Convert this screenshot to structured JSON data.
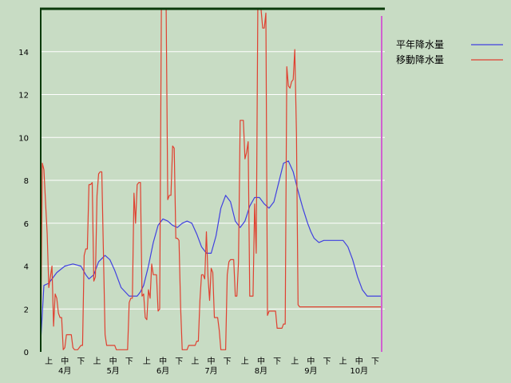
{
  "chart_data": {
    "type": "line",
    "title": "",
    "xlabel": "",
    "ylabel": "",
    "ylim": [
      0,
      16
    ],
    "yticks": [
      0,
      2,
      4,
      6,
      8,
      10,
      12,
      14
    ],
    "x_range_days": [
      0,
      212
    ],
    "decade_labels": [
      {
        "day": 5,
        "text": "上"
      },
      {
        "day": 15,
        "text": "中"
      },
      {
        "day": 25,
        "text": "下"
      },
      {
        "day": 35,
        "text": "上"
      },
      {
        "day": 45,
        "text": "中"
      },
      {
        "day": 55,
        "text": "下"
      },
      {
        "day": 66,
        "text": "上"
      },
      {
        "day": 76,
        "text": "中"
      },
      {
        "day": 86,
        "text": "下"
      },
      {
        "day": 96,
        "text": "上"
      },
      {
        "day": 106,
        "text": "中"
      },
      {
        "day": 116,
        "text": "下"
      },
      {
        "day": 127,
        "text": "上"
      },
      {
        "day": 137,
        "text": "中"
      },
      {
        "day": 147,
        "text": "下"
      },
      {
        "day": 158,
        "text": "上"
      },
      {
        "day": 168,
        "text": "中"
      },
      {
        "day": 178,
        "text": "下"
      },
      {
        "day": 188,
        "text": "上"
      },
      {
        "day": 198,
        "text": "中"
      },
      {
        "day": 208,
        "text": "下"
      }
    ],
    "month_labels": [
      {
        "day": 15,
        "text": "4月"
      },
      {
        "day": 45,
        "text": "5月"
      },
      {
        "day": 76,
        "text": "6月"
      },
      {
        "day": 106,
        "text": "7月"
      },
      {
        "day": 137,
        "text": "8月"
      },
      {
        "day": 168,
        "text": "9月"
      },
      {
        "day": 198,
        "text": "10月"
      }
    ],
    "grid": true,
    "legend_position": "top-right",
    "series": [
      {
        "name": "平年降水量",
        "color": "#4040e0",
        "x": [
          0,
          2,
          5,
          10,
          15,
          20,
          25,
          28,
          30,
          33,
          36,
          40,
          43,
          46,
          50,
          55,
          60,
          62,
          64,
          67,
          70,
          73,
          76,
          79,
          82,
          85,
          88,
          91,
          94,
          97,
          100,
          103,
          106,
          109,
          112,
          115,
          118,
          121,
          124,
          127,
          130,
          133,
          136,
          139,
          142,
          145,
          148,
          151,
          154,
          157,
          160,
          163,
          166,
          168,
          170,
          173,
          176,
          179,
          182,
          185,
          188,
          191,
          194,
          197,
          200,
          203,
          206,
          209,
          212
        ],
        "y": [
          0.5,
          3.1,
          3.2,
          3.7,
          4.0,
          4.1,
          4.0,
          3.6,
          3.4,
          3.6,
          4.2,
          4.5,
          4.3,
          3.8,
          3.0,
          2.6,
          2.6,
          2.8,
          3.1,
          4.0,
          5.1,
          5.9,
          6.2,
          6.1,
          5.9,
          5.8,
          6.0,
          6.1,
          6.0,
          5.5,
          4.9,
          4.6,
          4.6,
          5.4,
          6.7,
          7.3,
          7.0,
          6.1,
          5.8,
          6.1,
          6.8,
          7.2,
          7.2,
          6.9,
          6.7,
          7.0,
          7.9,
          8.8,
          8.9,
          8.4,
          7.5,
          6.7,
          6.0,
          5.6,
          5.3,
          5.1,
          5.2,
          5.2,
          5.2,
          5.2,
          5.2,
          4.9,
          4.3,
          3.5,
          2.9,
          2.6,
          2.6,
          2.6,
          2.6
        ]
      },
      {
        "name": "移動降水量",
        "color": "#e04030",
        "x": [
          0,
          1,
          2,
          3,
          4,
          5,
          6,
          7,
          8,
          9,
          10,
          11,
          12,
          13,
          14,
          15,
          16,
          17,
          18,
          19,
          20,
          21,
          22,
          23,
          24,
          25,
          26,
          27,
          28,
          29,
          30,
          31,
          32,
          33,
          34,
          35,
          36,
          37,
          38,
          39,
          40,
          41,
          42,
          43,
          44,
          45,
          46,
          47,
          48,
          49,
          50,
          51,
          52,
          53,
          54,
          55,
          56,
          57,
          58,
          59,
          60,
          61,
          62,
          63,
          64,
          65,
          66,
          67,
          68,
          69,
          70,
          71,
          72,
          73,
          74,
          75,
          76,
          77,
          78,
          79,
          80,
          81,
          82,
          83,
          84,
          85,
          86,
          87,
          88,
          89,
          90,
          91,
          92,
          93,
          94,
          95,
          96,
          97,
          98,
          99,
          100,
          101,
          102,
          103,
          104,
          105,
          106,
          107,
          108,
          109,
          110,
          111,
          112,
          113,
          114,
          115,
          116,
          117,
          118,
          119,
          120,
          121,
          122,
          123,
          124,
          125,
          126,
          127,
          128,
          129,
          130,
          131,
          132,
          133,
          134,
          135,
          136,
          137,
          138,
          139,
          140,
          141,
          142,
          143,
          144,
          145,
          146,
          147,
          148,
          149,
          150,
          151,
          152,
          153,
          154,
          155,
          156,
          157,
          158,
          159,
          160,
          161,
          162,
          163,
          164,
          165,
          166,
          167,
          168,
          169,
          170,
          171,
          172,
          173,
          174,
          175,
          176,
          177,
          178,
          179,
          180,
          181,
          182,
          183,
          184,
          185,
          186,
          187,
          188,
          189,
          190,
          191,
          192,
          193,
          194,
          195,
          196,
          197,
          198,
          199,
          200,
          201,
          202,
          203,
          204,
          205,
          206,
          207,
          208,
          209,
          210,
          211,
          212
        ],
        "y": [
          0.2,
          8.8,
          8.5,
          7.0,
          5.5,
          3.0,
          3.5,
          4.0,
          1.2,
          2.7,
          2.5,
          1.8,
          1.6,
          1.6,
          0.1,
          0.2,
          0.8,
          0.8,
          0.8,
          0.8,
          0.2,
          0.1,
          0.1,
          0.1,
          0.2,
          0.3,
          0.3,
          4.5,
          4.8,
          4.8,
          7.8,
          7.8,
          7.9,
          3.3,
          3.5,
          7.3,
          8.3,
          8.4,
          8.4,
          4.5,
          0.8,
          0.3,
          0.3,
          0.3,
          0.3,
          0.3,
          0.3,
          0.1,
          0.1,
          0.1,
          0.1,
          0.1,
          0.1,
          0.1,
          0.1,
          2.3,
          2.5,
          2.5,
          7.4,
          6.0,
          7.8,
          7.9,
          7.9,
          2.6,
          2.7,
          1.6,
          1.5,
          2.9,
          2.5,
          4.1,
          3.6,
          3.6,
          3.6,
          1.9,
          2.0,
          16.5,
          16.5,
          16.5,
          16.5,
          7.1,
          7.3,
          7.3,
          9.6,
          9.5,
          5.3,
          5.3,
          5.2,
          2.1,
          0.1,
          0.1,
          0.1,
          0.1,
          0.3,
          0.3,
          0.3,
          0.3,
          0.3,
          0.5,
          0.5,
          2.4,
          3.6,
          3.6,
          3.4,
          5.6,
          3.5,
          2.4,
          3.9,
          3.7,
          1.6,
          1.6,
          1.6,
          1.0,
          0.1,
          0.1,
          0.1,
          0.1,
          3.6,
          4.2,
          4.3,
          4.3,
          4.3,
          2.6,
          2.6,
          4.2,
          10.8,
          10.8,
          10.8,
          9.0,
          9.3,
          9.8,
          2.6,
          2.6,
          2.6,
          6.9,
          4.6,
          16.5,
          16.5,
          16.5,
          15.1,
          15.1,
          15.8,
          1.7,
          1.9,
          1.9,
          1.9,
          1.9,
          1.9,
          1.1,
          1.1,
          1.1,
          1.1,
          1.3,
          1.3,
          13.3,
          12.4,
          12.3,
          12.6,
          12.7,
          14.1,
          10.2,
          2.2,
          2.1,
          2.1,
          2.1,
          2.1,
          2.1,
          2.1,
          2.1,
          2.1,
          2.1,
          2.1,
          2.1,
          2.1,
          2.1,
          2.1,
          2.1,
          2.1,
          2.1,
          2.1,
          2.1,
          2.1,
          2.1,
          2.1,
          2.1,
          2.1,
          2.1,
          2.1,
          2.1,
          2.1,
          2.1,
          2.1,
          2.1,
          2.1,
          2.1,
          2.1,
          2.1,
          2.1,
          2.1,
          2.1,
          2.1,
          2.1,
          2.1,
          2.1,
          2.1,
          2.1,
          2.1,
          2.1,
          2.1,
          2.1,
          2.1,
          2.1,
          2.1,
          2.1
        ]
      }
    ],
    "marker_day": 212,
    "marker_color": "#d060d0"
  }
}
